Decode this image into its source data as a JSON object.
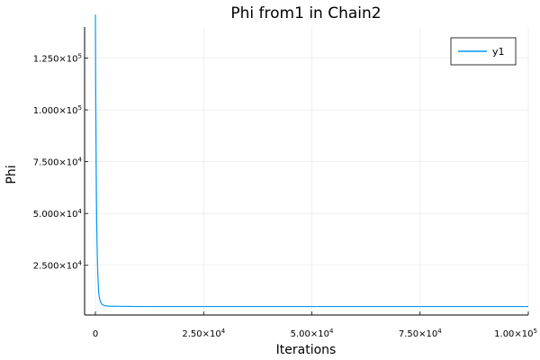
{
  "chart_data": {
    "type": "line",
    "title": "Phi from1 in Chain2",
    "xlabel": "Iterations",
    "ylabel": "Phi",
    "xlim": [
      -2500,
      100000
    ],
    "ylim": [
      1000,
      140000
    ],
    "grid": true,
    "legend_position": "top-right",
    "x_ticks": [
      {
        "value": 0,
        "mantissa": "0",
        "exp": ""
      },
      {
        "value": 25000,
        "mantissa": "2.50×10",
        "exp": "4"
      },
      {
        "value": 50000,
        "mantissa": "5.00×10",
        "exp": "4"
      },
      {
        "value": 75000,
        "mantissa": "7.50×10",
        "exp": "4"
      },
      {
        "value": 100000,
        "mantissa": "1.00×10",
        "exp": "5"
      }
    ],
    "y_ticks": [
      {
        "value": 25000,
        "mantissa": "2.500×10",
        "exp": "4"
      },
      {
        "value": 50000,
        "mantissa": "5.000×10",
        "exp": "4"
      },
      {
        "value": 75000,
        "mantissa": "7.500×10",
        "exp": "4"
      },
      {
        "value": 100000,
        "mantissa": "1.000×10",
        "exp": "5"
      },
      {
        "value": 125000,
        "mantissa": "1.250×10",
        "exp": "5"
      }
    ],
    "series": [
      {
        "name": "y1",
        "color": "#009af9",
        "x": [
          1,
          50,
          100,
          150,
          200,
          250,
          300,
          400,
          500,
          600,
          700,
          800,
          1000,
          1200,
          1500,
          2000,
          3000,
          5000,
          10000,
          20000,
          40000,
          60000,
          80000,
          100000
        ],
        "y": [
          146000,
          118000,
          98000,
          82000,
          68000,
          56000,
          45000,
          33000,
          24000,
          18000,
          14000,
          11000,
          8500,
          7200,
          6200,
          5600,
          5300,
          5200,
          5100,
          5100,
          5100,
          5100,
          5100,
          5100
        ]
      }
    ]
  }
}
